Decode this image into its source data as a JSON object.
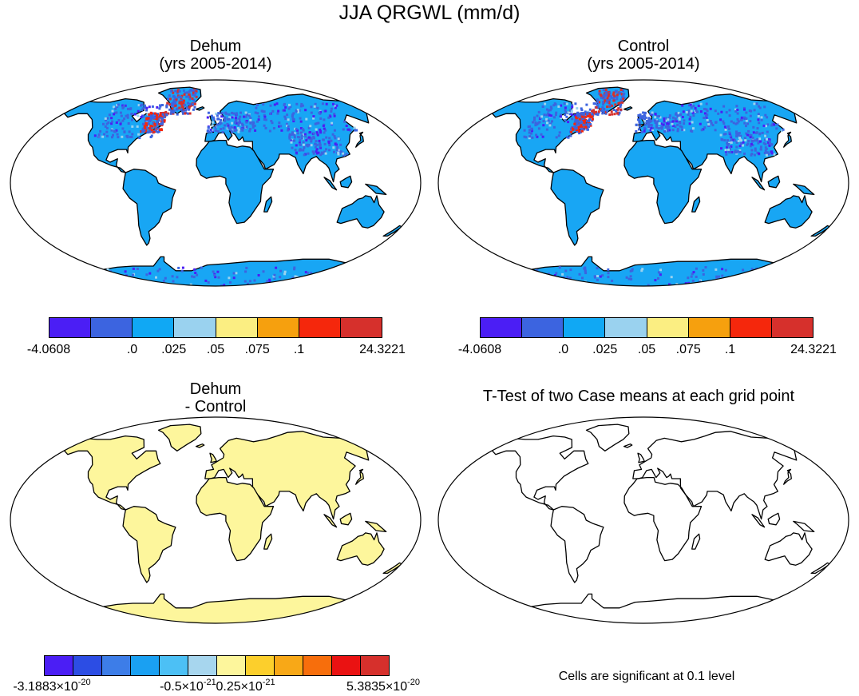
{
  "figure": {
    "title": "JJA QRGWL (mm/d)"
  },
  "panels": [
    {
      "title_line1": "Dehum",
      "title_line2": "(yrs 2005-2014)"
    },
    {
      "title_line1": "Control",
      "title_line2": "(yrs 2005-2014)"
    },
    {
      "title_line1": "Dehum",
      "title_line2": "- Control"
    },
    {
      "title_line1": "T-Test of two Case means at each grid point",
      "title_line2": ""
    }
  ],
  "colorbar_top": {
    "colors": [
      "#4b1ef5",
      "#3c64e0",
      "#10a8f4",
      "#9ad2ef",
      "#fbee82",
      "#f6a00e",
      "#f5270c",
      "#d6302c"
    ],
    "labels": [
      "-4.0608",
      ".0",
      ".025",
      ".05",
      ".075",
      ".1",
      "24.3221"
    ]
  },
  "colorbar_diff": {
    "colors": [
      "#4b1ef5",
      "#2c4de4",
      "#3d7de8",
      "#1aa0f2",
      "#4cc0f5",
      "#a7d6ee",
      "#fdf69c",
      "#fccf2c",
      "#f8a817",
      "#f76e0c",
      "#ea1212",
      "#d6302c"
    ],
    "labels": [
      {
        "mant": "-3.1883×10",
        "exp": "-20"
      },
      {
        "mant": "-0.5×10",
        "exp": "-21"
      },
      {
        "mant": "0.25×10",
        "exp": "-21"
      },
      {
        "mant": "5.3835×10",
        "exp": "-20"
      }
    ]
  },
  "ttest_note": "Cells are significant at 0.1 level",
  "map_colors": {
    "ocean": "#ffffff",
    "land_background": "#18a6f4",
    "diff_land": "#fdf69c",
    "coast": "#000000"
  }
}
